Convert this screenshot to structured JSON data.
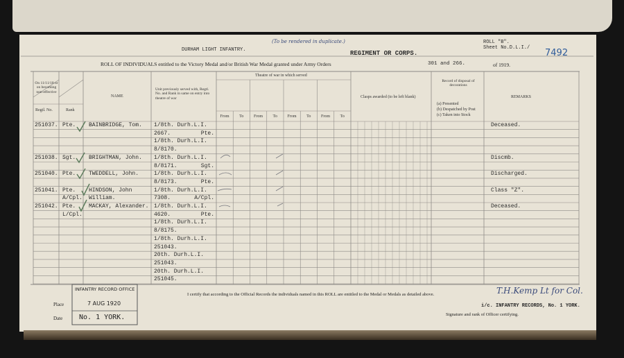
{
  "header": {
    "note": "(To be rendered in duplicate.)",
    "corps": "DURHAM LIGHT INFANTRY.",
    "corps_label": "REGIMENT OR CORPS.",
    "roll": "ROLL \"B\".",
    "sheet": "Sheet No.D.L.I./",
    "sheet_number": "7492",
    "title": "ROLL OF INDIVIDUALS entitled to the Victory Medal and/or British War Medal granted under Army Orders",
    "orders": "301 and 266.",
    "year": "of 1919."
  },
  "columns": {
    "status": "On 11/11/18 or on becoming non-effective",
    "regtl_no": "Regtl. No.",
    "rank": "Rank",
    "name": "NAME",
    "unit": "Unit previously served with, Regtl. No. and Rank in same on entry into theatre of war",
    "theatre": "Theatre of war in which served",
    "theatre_subheads": [
      "From",
      "To",
      "From",
      "To",
      "From",
      "To",
      "From",
      "To"
    ],
    "clasps": "Clasps awarded (to be left blank)",
    "record": "Record of disposal of decorations",
    "record_options": [
      "(a) Presented",
      "(b) Despatched by Post",
      "(c) Taken into Stock"
    ],
    "remarks": "REMARKS"
  },
  "lines": [
    {
      "regtl_no": "251037.",
      "rank": "Pte.",
      "name": "BAINBRIDGE, Tom.",
      "unit": "1/8th. Durh.L.I.",
      "remarks": "Deceased."
    },
    {
      "unit": "2667.",
      "unit_rank": "Pte."
    },
    {
      "unit": "1/8th. Durh.L.I."
    },
    {
      "unit": "8/8170."
    },
    {
      "regtl_no": "251038.",
      "rank": "Sgt.",
      "name": "BRIGHTMAN, John.",
      "unit": "1/8th. Durh.L.I.",
      "remarks": "Discmb."
    },
    {
      "unit": "8/8171.",
      "unit_rank": "Sgt."
    },
    {
      "regtl_no": "251040.",
      "rank": "Pte.",
      "name": "TWEDDELL, John.",
      "unit": "1/8th. Durh.L.I.",
      "remarks": "Discharged."
    },
    {
      "unit": "8/8173.",
      "unit_rank": "Pte."
    },
    {
      "regtl_no": "251041.",
      "rank": "Pte.",
      "name": "HINDSON, John",
      "unit": "1/8th. Durh.L.I.",
      "remarks": "Class \"Z\"."
    },
    {
      "rank": "A/Cpl.",
      "name": "William.",
      "unit": "7308.",
      "unit_rank": "A/Cpl."
    },
    {
      "regtl_no": "251042.",
      "rank": "Pte.",
      "name": "MACKAY, Alexander.",
      "unit": "1/8th. Durh.L.I.",
      "remarks": "Deceased."
    },
    {
      "rank": "L/Cpl.",
      "unit": "4620.",
      "unit_rank": "Pte."
    },
    {
      "unit": "1/8th. Durh.L.I."
    },
    {
      "unit": "8/8175."
    },
    {
      "unit": "1/8th. Durh.L.I."
    },
    {
      "unit": "251043."
    },
    {
      "unit": "20th. Durh.L.I."
    },
    {
      "unit": "251043."
    },
    {
      "unit": "20th. Durh.L.I."
    },
    {
      "unit": "251045."
    }
  ],
  "footer": {
    "certify": "I certify that according to the Official Records the individuals named in this ROLL are entitled to the Medal or Medals as detailed above.",
    "place_label": "Place",
    "date_label": "Date",
    "stamp_office": "INFANTRY RECORD OFFICE",
    "stamp_date": "7 AUG 1920",
    "stamp_place": "No. 1 YORK.",
    "signature": "T.H.Kemp Lt for Col.",
    "officer": "i/c. INFANTRY RECORDS, No. 1 YORK.",
    "signature_label": "Signature and rank of Officer certifying."
  }
}
